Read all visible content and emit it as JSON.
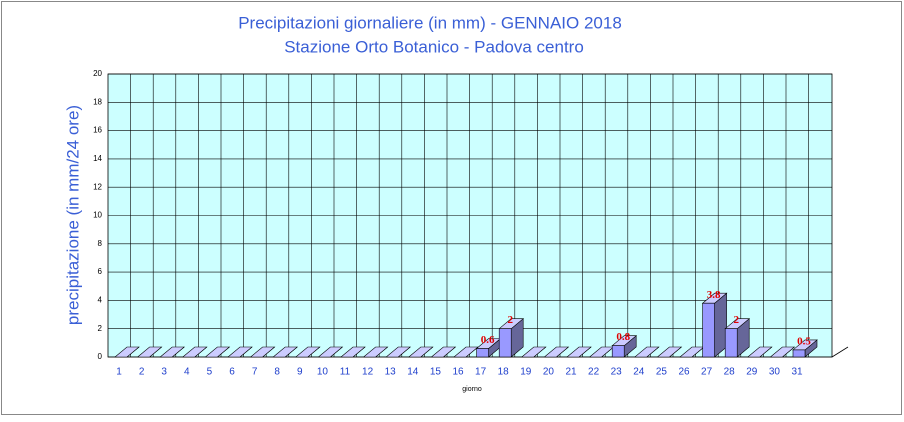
{
  "chart_data": {
    "type": "bar3d",
    "title": "Precipitazioni giornaliere (in mm) - GENNAIO 2018",
    "subtitle": "Stazione Orto Botanico - Padova centro",
    "x_label": "giorno",
    "y_label": "precipitazione (in mm/24 ore)",
    "categories": [
      "1",
      "2",
      "3",
      "4",
      "5",
      "6",
      "7",
      "8",
      "9",
      "10",
      "11",
      "12",
      "13",
      "14",
      "15",
      "16",
      "17",
      "18",
      "19",
      "20",
      "21",
      "22",
      "23",
      "24",
      "25",
      "26",
      "27",
      "28",
      "29",
      "30",
      "31"
    ],
    "values": [
      0,
      0,
      0,
      0,
      0,
      0,
      0,
      0,
      0,
      0,
      0,
      0,
      0,
      0,
      0,
      0,
      0.6,
      2,
      0,
      0,
      0,
      0,
      0.8,
      0,
      0,
      0,
      3.8,
      2,
      0,
      0,
      0.5
    ],
    "color": "#9999ff",
    "ylim": [
      0,
      20
    ],
    "yticks": [
      0,
      2,
      4,
      6,
      8,
      10,
      12,
      14,
      16,
      18,
      20
    ],
    "grid": true
  }
}
